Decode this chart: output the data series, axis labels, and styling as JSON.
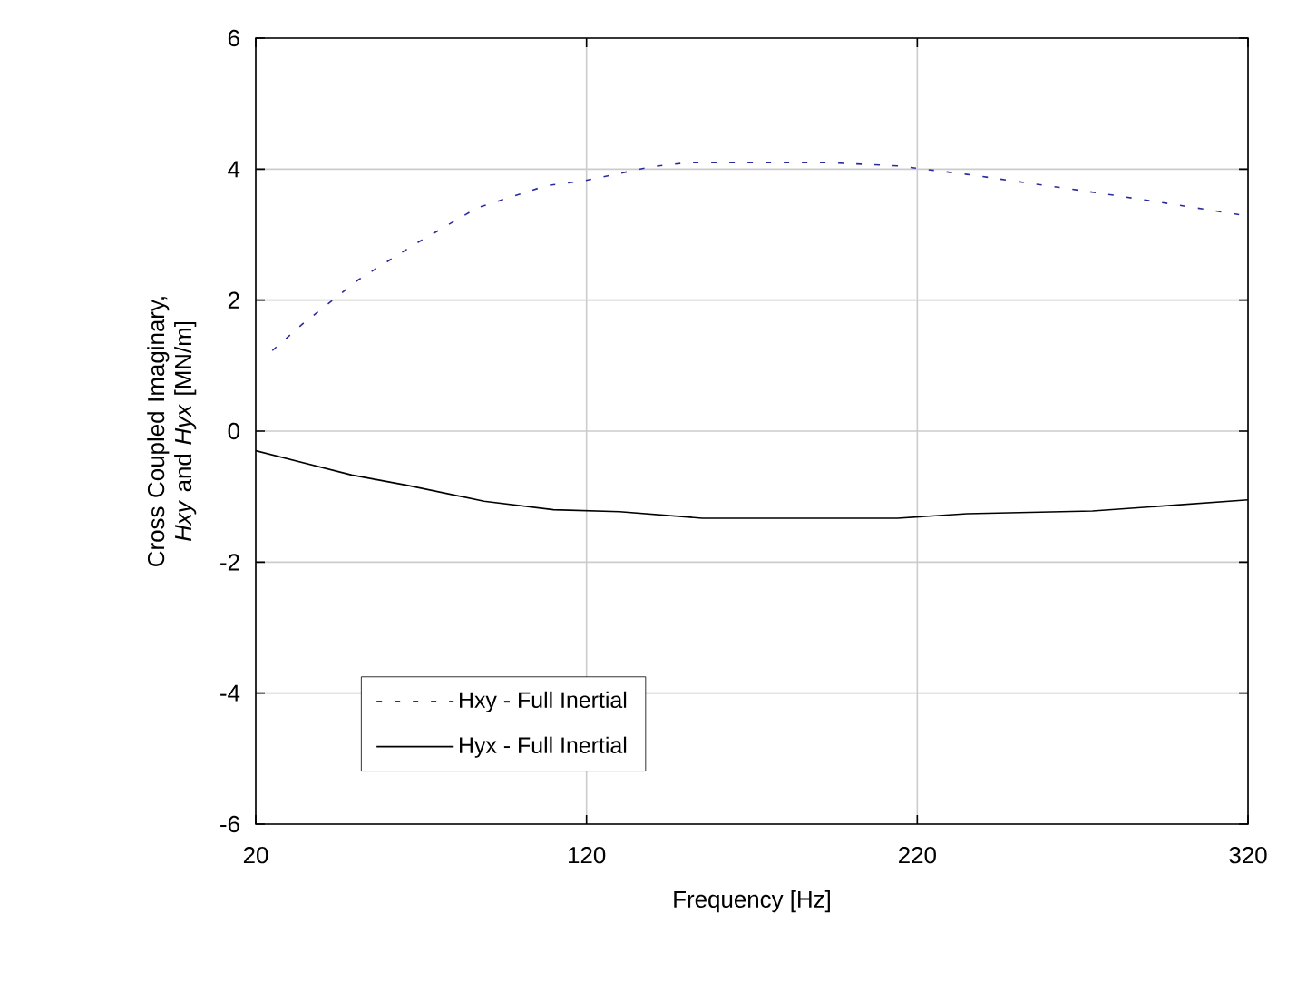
{
  "chart_data": {
    "type": "line",
    "xlabel": "Frequency [Hz]",
    "ylabel": "Cross Coupled Imaginary, *Hxy* and *Hyx* [MN/m]",
    "xlim": [
      20,
      320
    ],
    "xticks": [
      20,
      120,
      220,
      320
    ],
    "ylim": [
      -6,
      6
    ],
    "yticks": [
      -6,
      -4,
      -2,
      0,
      2,
      4,
      6
    ],
    "grid": true,
    "legend": "bottom left",
    "marker": "none",
    "series": [
      {
        "name": "Hxy - Full Inertial",
        "color": "#2b2b9e",
        "line_style": "dotted",
        "x": [
          25,
          34,
          51,
          68,
          87,
          108,
          119,
          140,
          151,
          193,
          214,
          235,
          256,
          277,
          299,
          318
        ],
        "values": [
          1.23,
          1.63,
          2.31,
          2.85,
          3.41,
          3.75,
          3.82,
          4.04,
          4.1,
          4.1,
          4.05,
          3.92,
          3.77,
          3.62,
          3.45,
          3.3
        ]
      },
      {
        "name": "Hyx - Full Inertial",
        "color": "#000000",
        "line_style": "solid",
        "x": [
          20,
          49,
          66,
          89,
          110,
          130,
          155,
          214,
          235,
          273,
          320
        ],
        "values": [
          -0.3,
          -0.67,
          -0.83,
          -1.07,
          -1.2,
          -1.23,
          -1.33,
          -1.33,
          -1.26,
          -1.22,
          -1.05
        ]
      }
    ]
  }
}
